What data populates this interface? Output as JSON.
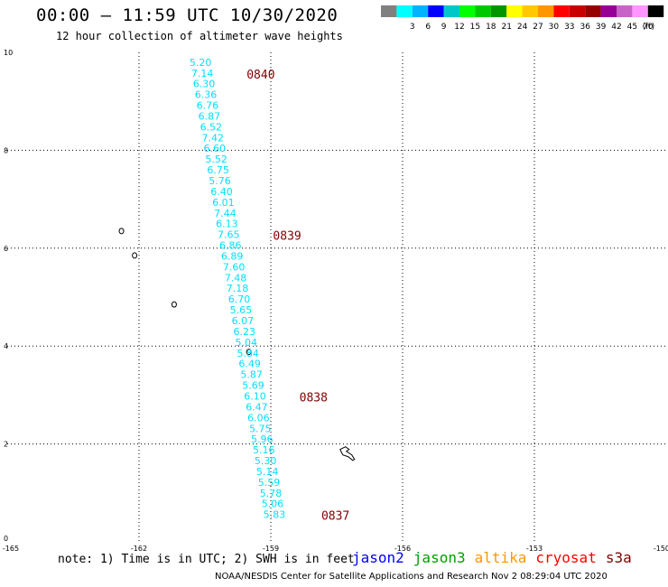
{
  "header": {
    "title": "00:00 – 11:59 UTC 10/30/2020",
    "subtitle": "12 hour collection of altimeter wave heights"
  },
  "legend": {
    "unit": "(ft)",
    "bins": [
      {
        "label": "",
        "color": "#808080"
      },
      {
        "label": "3",
        "color": "#00ffff"
      },
      {
        "label": "6",
        "color": "#00b4ff"
      },
      {
        "label": "9",
        "color": "#0000ff"
      },
      {
        "label": "12",
        "color": "#00c8c8"
      },
      {
        "label": "15",
        "color": "#00ff00"
      },
      {
        "label": "18",
        "color": "#00c800"
      },
      {
        "label": "21",
        "color": "#009600"
      },
      {
        "label": "24",
        "color": "#ffff00"
      },
      {
        "label": "27",
        "color": "#ffc800"
      },
      {
        "label": "30",
        "color": "#ff9600"
      },
      {
        "label": "33",
        "color": "#ff0000"
      },
      {
        "label": "36",
        "color": "#c80000"
      },
      {
        "label": "39",
        "color": "#960000"
      },
      {
        "label": "42",
        "color": "#960096"
      },
      {
        "label": "45",
        "color": "#c864c8"
      },
      {
        "label": "70",
        "color": "#ff96ff"
      },
      {
        "label": "",
        "color": "#000000"
      }
    ]
  },
  "map": {
    "lon_range": [
      -165,
      -150
    ],
    "lat_range": [
      0,
      10
    ],
    "lon_ticks": [
      "-165",
      "-162",
      "-159",
      "-156",
      "-153",
      "-150"
    ],
    "lat_ticks": [
      "0",
      "2",
      "4",
      "6",
      "8",
      "10"
    ],
    "track_color": "#00e0ff",
    "time_label_color": "#800000",
    "track": [
      {
        "lon": -160.6,
        "lat": 9.8,
        "swh": "5.20"
      },
      {
        "lon": -160.56,
        "lat": 9.58,
        "swh": "7.14"
      },
      {
        "lon": -160.52,
        "lat": 9.36,
        "swh": "6.30"
      },
      {
        "lon": -160.48,
        "lat": 9.14,
        "swh": "6.36"
      },
      {
        "lon": -160.44,
        "lat": 8.92,
        "swh": "6.76"
      },
      {
        "lon": -160.4,
        "lat": 8.7,
        "swh": "6.87"
      },
      {
        "lon": -160.36,
        "lat": 8.48,
        "swh": "6.52"
      },
      {
        "lon": -160.32,
        "lat": 8.26,
        "swh": "7.42"
      },
      {
        "lon": -160.28,
        "lat": 8.04,
        "swh": "6.60"
      },
      {
        "lon": -160.24,
        "lat": 7.82,
        "swh": "5.52"
      },
      {
        "lon": -160.2,
        "lat": 7.6,
        "swh": "6.75"
      },
      {
        "lon": -160.16,
        "lat": 7.38,
        "swh": "5.76"
      },
      {
        "lon": -160.12,
        "lat": 7.16,
        "swh": "6.40"
      },
      {
        "lon": -160.08,
        "lat": 6.94,
        "swh": "6.01"
      },
      {
        "lon": -160.04,
        "lat": 6.72,
        "swh": "7.44"
      },
      {
        "lon": -160.0,
        "lat": 6.5,
        "swh": "6.13"
      },
      {
        "lon": -159.96,
        "lat": 6.28,
        "swh": "7.65"
      },
      {
        "lon": -159.92,
        "lat": 6.06,
        "swh": "6.86"
      },
      {
        "lon": -159.88,
        "lat": 5.84,
        "swh": "6.89"
      },
      {
        "lon": -159.84,
        "lat": 5.62,
        "swh": "7.60"
      },
      {
        "lon": -159.8,
        "lat": 5.4,
        "swh": "7.48"
      },
      {
        "lon": -159.76,
        "lat": 5.18,
        "swh": "7.18"
      },
      {
        "lon": -159.72,
        "lat": 4.96,
        "swh": "6.70"
      },
      {
        "lon": -159.68,
        "lat": 4.74,
        "swh": "5.65"
      },
      {
        "lon": -159.64,
        "lat": 4.52,
        "swh": "6.07"
      },
      {
        "lon": -159.6,
        "lat": 4.3,
        "swh": "6.23"
      },
      {
        "lon": -159.56,
        "lat": 4.08,
        "swh": "5.04"
      },
      {
        "lon": -159.52,
        "lat": 3.86,
        "swh": "5.84"
      },
      {
        "lon": -159.48,
        "lat": 3.64,
        "swh": "6.49"
      },
      {
        "lon": -159.44,
        "lat": 3.42,
        "swh": "5.87"
      },
      {
        "lon": -159.4,
        "lat": 3.2,
        "swh": "5.69"
      },
      {
        "lon": -159.36,
        "lat": 2.98,
        "swh": "6.10"
      },
      {
        "lon": -159.32,
        "lat": 2.76,
        "swh": "6.47"
      },
      {
        "lon": -159.28,
        "lat": 2.54,
        "swh": "6.06"
      },
      {
        "lon": -159.24,
        "lat": 2.32,
        "swh": "5.75"
      },
      {
        "lon": -159.2,
        "lat": 2.1,
        "swh": "5.96"
      },
      {
        "lon": -159.16,
        "lat": 1.88,
        "swh": "5.16"
      },
      {
        "lon": -159.12,
        "lat": 1.66,
        "swh": "5.30"
      },
      {
        "lon": -159.08,
        "lat": 1.44,
        "swh": "5.14"
      },
      {
        "lon": -159.04,
        "lat": 1.22,
        "swh": "5.59"
      },
      {
        "lon": -159.0,
        "lat": 1.0,
        "swh": "5.78"
      },
      {
        "lon": -158.96,
        "lat": 0.78,
        "swh": "5.06"
      },
      {
        "lon": -158.92,
        "lat": 0.56,
        "swh": "5.83"
      }
    ],
    "time_labels": [
      {
        "text": "0840",
        "lon": -159.55,
        "lat": 9.56
      },
      {
        "text": "0839",
        "lon": -158.95,
        "lat": 6.26
      },
      {
        "text": "0838",
        "lon": -158.35,
        "lat": 2.96
      },
      {
        "text": "0837",
        "lon": -157.85,
        "lat": 0.54
      }
    ],
    "islands": [
      {
        "lon": -162.4,
        "lat": 6.35
      },
      {
        "lon": -162.1,
        "lat": 5.85
      },
      {
        "lon": -161.2,
        "lat": 4.85
      },
      {
        "lon": -159.5,
        "lat": 3.88
      },
      {
        "lon": -157.3,
        "lat": 1.85
      }
    ]
  },
  "footer": {
    "note": "note: 1) Time is in UTC; 2) SWH is in feet",
    "credit": "NOAA/NESDIS Center for Satellite Applications and Research    Nov  2 08:29:04 UTC 2020",
    "satellites": [
      {
        "name": "jason2",
        "color": "#0000ff"
      },
      {
        "name": "jason3",
        "color": "#00a000"
      },
      {
        "name": "altika",
        "color": "#ff9600"
      },
      {
        "name": "cryosat",
        "color": "#ff0000"
      },
      {
        "name": "s3a",
        "color": "#800000"
      }
    ]
  }
}
